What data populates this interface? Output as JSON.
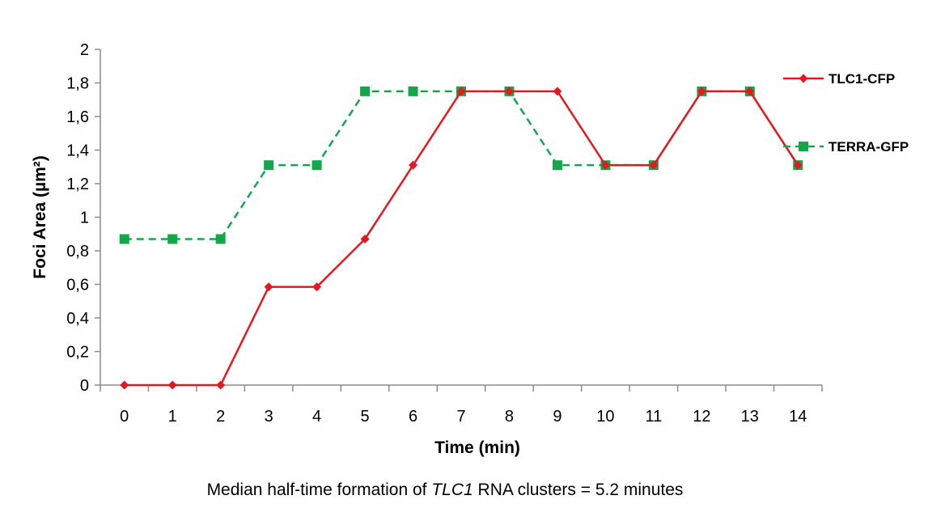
{
  "chart_data": {
    "type": "line",
    "xlabel": "Time (min)",
    "ylabel": "Foci Area (µm²)",
    "x": [
      0,
      1,
      2,
      3,
      4,
      5,
      6,
      7,
      8,
      9,
      10,
      11,
      12,
      13,
      14
    ],
    "ylim": [
      0,
      2
    ],
    "yticks": [
      "0",
      "0,2",
      "0,4",
      "0,6",
      "0,8",
      "1",
      "1,2",
      "1,4",
      "1,6",
      "1,8",
      "2"
    ],
    "grid": false,
    "legend_placement": "right",
    "series": [
      {
        "name": "TLC1-CFP",
        "color": "#e8171d",
        "marker": "diamond",
        "dash": "solid",
        "values": [
          0,
          0,
          0,
          0.585,
          0.585,
          0.87,
          1.31,
          1.75,
          1.75,
          1.75,
          1.31,
          1.31,
          1.75,
          1.75,
          1.31
        ]
      },
      {
        "name": "TERRA-GFP",
        "color": "#12a84a",
        "marker": "square",
        "dash": "dashed",
        "values": [
          0.87,
          0.87,
          0.87,
          1.31,
          1.31,
          1.75,
          1.75,
          1.75,
          1.75,
          1.31,
          1.31,
          1.31,
          1.75,
          1.75,
          1.31
        ]
      }
    ]
  },
  "caption": {
    "before": "Median half-time formation of ",
    "italic": "TLC1",
    "after": " RNA clusters = 5.2 minutes"
  }
}
